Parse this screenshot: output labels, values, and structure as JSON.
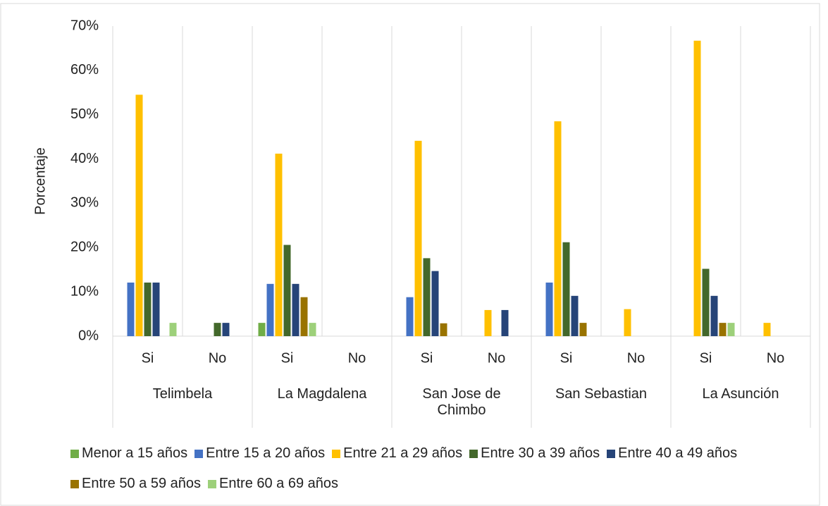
{
  "chart_data": {
    "type": "bar",
    "y_label": "Porcentaje",
    "categories": [
      "Si",
      "No",
      "Si",
      "No",
      "Si",
      "No",
      "Si",
      "No",
      "Si",
      "No"
    ],
    "groups": [
      "Telimbela",
      "La Magdalena",
      "San Jose de Chimbo",
      "San Sebastian",
      "La Asunción"
    ],
    "series": [
      {
        "name": "Menor a 15 años",
        "color": "#70ad47",
        "values": [
          0,
          0,
          3.0,
          0,
          0,
          0,
          0,
          0,
          0,
          0
        ]
      },
      {
        "name": "Entre 15 a 20 años",
        "color": "#4472c4",
        "values": [
          12.1,
          0,
          11.8,
          0,
          8.8,
          0,
          12.1,
          0,
          0,
          0
        ]
      },
      {
        "name": "Entre 21 a 29 años",
        "color": "#ffc000",
        "values": [
          54.5,
          0,
          41.2,
          0,
          44.1,
          5.9,
          48.5,
          6.1,
          66.7,
          3.0
        ]
      },
      {
        "name": "Entre 30 a 39 años",
        "color": "#43682b",
        "values": [
          12.1,
          3.0,
          20.6,
          0,
          17.6,
          0,
          21.2,
          0,
          15.2,
          0
        ]
      },
      {
        "name": "Entre 40 a 49 años",
        "color": "#264478",
        "values": [
          12.1,
          3.0,
          11.8,
          0,
          14.7,
          5.9,
          9.1,
          0,
          9.1,
          0
        ]
      },
      {
        "name": "Entre 50 a 59 años",
        "color": "#997300",
        "values": [
          0,
          0,
          8.8,
          0,
          2.9,
          0,
          3.0,
          0,
          3.0,
          0
        ]
      },
      {
        "name": "Entre 60 a 69 años",
        "color": "#9dd07a",
        "values": [
          3.0,
          0,
          3.0,
          0,
          0,
          0,
          0,
          0,
          3.0,
          0
        ]
      }
    ],
    "ylim": [
      0,
      70
    ],
    "yticks": [
      {
        "value": 0,
        "label": "0%"
      },
      {
        "value": 10,
        "label": "10%"
      },
      {
        "value": 20,
        "label": "20%"
      },
      {
        "value": 30,
        "label": "30%"
      },
      {
        "value": 40,
        "label": "40%"
      },
      {
        "value": 50,
        "label": "50%"
      },
      {
        "value": 60,
        "label": "60%"
      },
      {
        "value": 70,
        "label": "70%"
      }
    ],
    "grid": true,
    "legend": "bottom"
  }
}
